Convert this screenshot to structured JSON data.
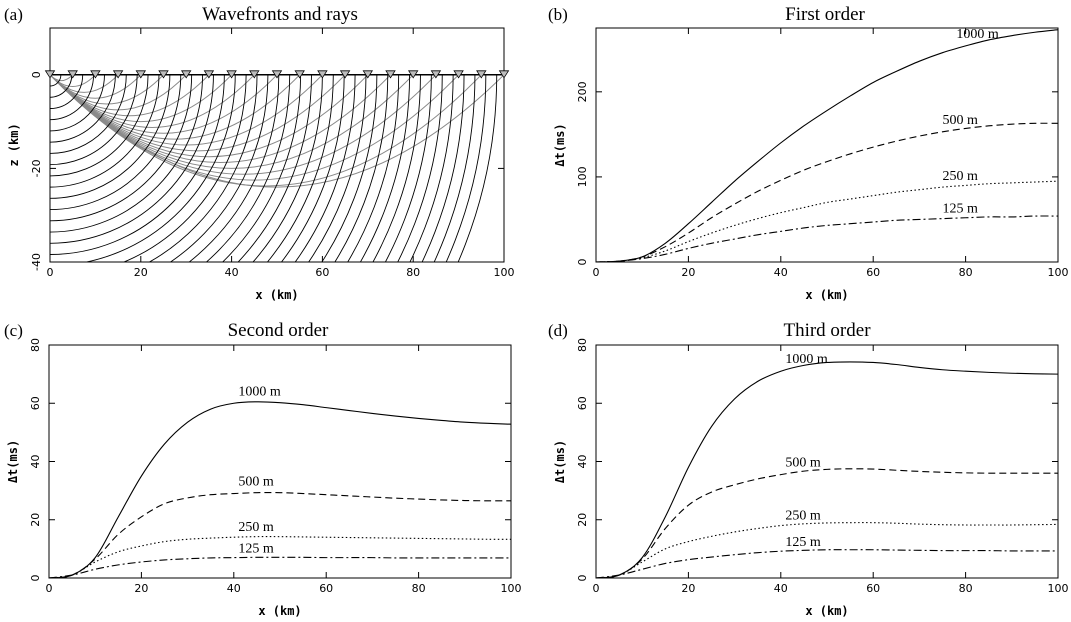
{
  "figure": {
    "panels": [
      {
        "letter": "(a)",
        "title": "Wavefronts and rays"
      },
      {
        "letter": "(b)",
        "title": "First order"
      },
      {
        "letter": "(c)",
        "title": "Second order"
      },
      {
        "letter": "(d)",
        "title": "Third order"
      }
    ]
  },
  "chart_data": [
    {
      "type": "line",
      "panel": "(a)",
      "title": "Wavefronts and rays",
      "xlabel": "x (km)",
      "ylabel": "z (km)",
      "xlim": [
        0,
        100
      ],
      "ylim": [
        -40,
        10
      ],
      "xticks": [
        0,
        20,
        40,
        60,
        80,
        100
      ],
      "yticks": [
        0,
        -20,
        -40
      ],
      "receivers_x": [
        0,
        5,
        10,
        15,
        20,
        25,
        30,
        35,
        40,
        45,
        50,
        55,
        60,
        65,
        70,
        75,
        80,
        85,
        90,
        95,
        100
      ],
      "receiver_z": 0,
      "source": {
        "x": 0,
        "z": 0
      },
      "description_series": [
        {
          "name": "wavefronts",
          "color": "#000000"
        },
        {
          "name": "rays",
          "color": "#8a8a8a"
        }
      ]
    },
    {
      "type": "line",
      "panel": "(b)",
      "title": "First order",
      "xlabel": "x (km)",
      "ylabel": "Δt(ms)",
      "xlim": [
        0,
        100
      ],
      "ylim": [
        0,
        275
      ],
      "xticks": [
        0,
        20,
        40,
        60,
        80,
        100
      ],
      "yticks": [
        0,
        100,
        200
      ],
      "x": [
        0,
        5,
        10,
        15,
        20,
        25,
        30,
        35,
        40,
        45,
        50,
        55,
        60,
        65,
        70,
        75,
        80,
        85,
        90,
        95,
        100
      ],
      "series": [
        {
          "name": "1000 m",
          "dash": "solid",
          "values": [
            0,
            1,
            6,
            22,
            45,
            70,
            95,
            118,
            140,
            160,
            178,
            195,
            211,
            224,
            236,
            246,
            254,
            261,
            266,
            270,
            273
          ]
        },
        {
          "name": "500 m",
          "dash": "dashed",
          "values": [
            0,
            1,
            6,
            18,
            34,
            52,
            68,
            83,
            96,
            108,
            118,
            127,
            135,
            142,
            148,
            153,
            157,
            160,
            162,
            163,
            163
          ]
        },
        {
          "name": "250 m",
          "dash": "dotted",
          "values": [
            0,
            1,
            5,
            13,
            24,
            34,
            43,
            51,
            58,
            64,
            70,
            74,
            78,
            82,
            85,
            88,
            90,
            92,
            93,
            94,
            95
          ]
        },
        {
          "name": "125 m",
          "dash": "dashdot",
          "values": [
            0,
            1,
            4,
            9,
            16,
            22,
            27,
            32,
            36,
            40,
            43,
            45,
            47,
            49,
            50,
            51,
            52,
            53,
            53,
            54,
            54
          ]
        }
      ]
    },
    {
      "type": "line",
      "panel": "(c)",
      "title": "Second order",
      "xlabel": "x (km)",
      "ylabel": "Δt(ms)",
      "xlim": [
        0,
        100
      ],
      "ylim": [
        0,
        80
      ],
      "xticks": [
        0,
        20,
        40,
        60,
        80,
        100
      ],
      "yticks": [
        0,
        20,
        40,
        60,
        80
      ],
      "x": [
        0,
        5,
        10,
        15,
        20,
        25,
        30,
        35,
        40,
        45,
        50,
        55,
        60,
        65,
        70,
        75,
        80,
        85,
        90,
        95,
        100
      ],
      "series": [
        {
          "name": "1000 m",
          "dash": "solid",
          "values": [
            0,
            1,
            7,
            21,
            35,
            46,
            53.5,
            58,
            60,
            60.5,
            60.2,
            59.5,
            58.5,
            57.5,
            56.5,
            55.6,
            54.8,
            54.1,
            53.5,
            53.1,
            52.8
          ]
        },
        {
          "name": "500 m",
          "dash": "dashed",
          "values": [
            0,
            1,
            6.5,
            15,
            21,
            25.5,
            27.5,
            28.6,
            29,
            29.3,
            29.3,
            29,
            28.6,
            28.2,
            27.8,
            27.4,
            27.1,
            26.8,
            26.6,
            26.5,
            26.5
          ]
        },
        {
          "name": "250 m",
          "dash": "dotted",
          "values": [
            0,
            1,
            5.5,
            9,
            11,
            12.5,
            13.3,
            13.7,
            14,
            14.2,
            14.2,
            14.1,
            14,
            13.9,
            13.8,
            13.7,
            13.6,
            13.5,
            13.4,
            13.3,
            13.3
          ]
        },
        {
          "name": "125 m",
          "dash": "dashdot",
          "values": [
            0,
            1,
            3,
            4.5,
            5.5,
            6.2,
            6.6,
            6.9,
            7,
            7.1,
            7.1,
            7.1,
            7,
            7,
            7,
            6.9,
            6.9,
            6.9,
            6.9,
            6.9,
            6.9
          ]
        }
      ]
    },
    {
      "type": "line",
      "panel": "(d)",
      "title": "Third order",
      "xlabel": "x (km)",
      "ylabel": "Δt(ms)",
      "xlim": [
        0,
        100
      ],
      "ylim": [
        0,
        80
      ],
      "xticks": [
        0,
        20,
        40,
        60,
        80,
        100
      ],
      "yticks": [
        0,
        20,
        40,
        60,
        80
      ],
      "x": [
        0,
        5,
        10,
        15,
        20,
        25,
        30,
        35,
        40,
        45,
        50,
        55,
        60,
        65,
        70,
        75,
        80,
        85,
        90,
        95,
        100
      ],
      "series": [
        {
          "name": "1000 m",
          "dash": "solid",
          "values": [
            0,
            1,
            7,
            21,
            38,
            52,
            61.5,
            67.5,
            71,
            73,
            74,
            74.2,
            74,
            73.3,
            72.3,
            71.5,
            71,
            70.6,
            70.3,
            70.1,
            70
          ]
        },
        {
          "name": "500 m",
          "dash": "dashed",
          "values": [
            0,
            1,
            6.5,
            17,
            25,
            29.5,
            32,
            34,
            35.5,
            36.7,
            37.3,
            37.5,
            37.4,
            37,
            36.6,
            36.3,
            36.1,
            36,
            36,
            36,
            36
          ]
        },
        {
          "name": "250 m",
          "dash": "dotted",
          "values": [
            0,
            1,
            5.5,
            10,
            12.5,
            14.3,
            15.8,
            17,
            18,
            18.6,
            18.9,
            19,
            19,
            18.8,
            18.5,
            18.3,
            18.2,
            18.2,
            18.2,
            18.3,
            18.4
          ]
        },
        {
          "name": "125 m",
          "dash": "dashdot",
          "values": [
            0,
            1,
            3,
            5,
            6.3,
            7.2,
            8,
            8.7,
            9.2,
            9.5,
            9.7,
            9.7,
            9.7,
            9.6,
            9.5,
            9.4,
            9.4,
            9.4,
            9.3,
            9.3,
            9.3
          ]
        }
      ]
    }
  ]
}
